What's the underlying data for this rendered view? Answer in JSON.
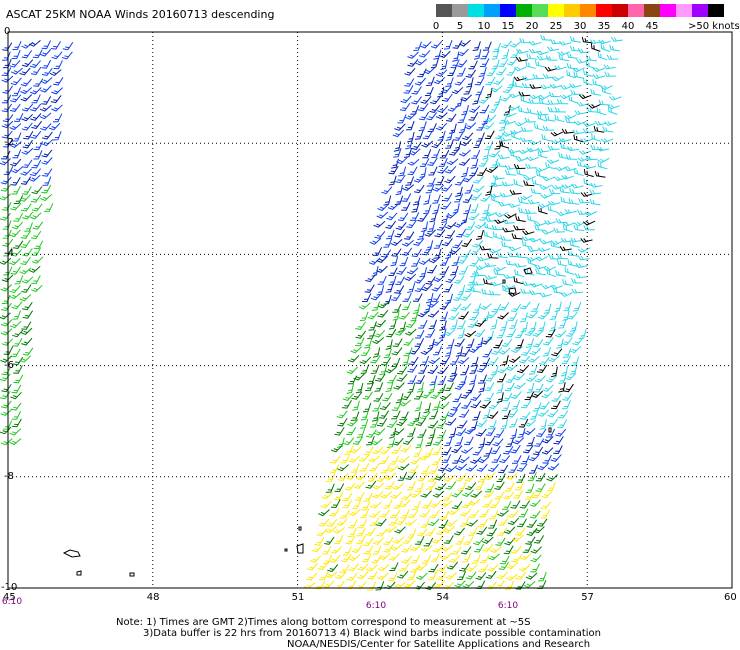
{
  "title": "ASCAT 25KM NOAA Winds 20160713 descending",
  "legend": {
    "unit": "knots",
    "labels": [
      "0",
      "5",
      "10",
      "15",
      "20",
      "25",
      "30",
      "35",
      "40",
      "45",
      ">50 knots"
    ],
    "colors": [
      "#555555",
      "#9a9a9a",
      "#00e0e0",
      "#00a0ff",
      "#0000ff",
      "#00b000",
      "#55dd55",
      "#ffff00",
      "#ffcc00",
      "#ff8800",
      "#ff0000",
      "#cc0000",
      "#ff66aa",
      "#8b4513",
      "#ff00ff",
      "#ff99ff",
      "#a000ff",
      "#000000"
    ]
  },
  "map": {
    "x_ticks": [
      "45",
      "48",
      "51",
      "54",
      "57",
      "60"
    ],
    "y_ticks": [
      "0",
      "-2",
      "-4",
      "-6",
      "-8",
      "-10"
    ],
    "lon_range": [
      45,
      60
    ],
    "lat_range": [
      -10,
      0
    ],
    "grid": "dotted",
    "swath_colors": {
      "cyan": "#2cd5e8",
      "blue": "#1040f0",
      "darkblue": "#0020b0",
      "green": "#20c820",
      "darkgreen": "#007a00",
      "yellow": "#ffe800",
      "black": "#000000"
    }
  },
  "times": [
    "6:10",
    "6:10",
    "6:10"
  ],
  "notes": [
    "Note: 1) Times are GMT 2)Times along bottom correspond to measurement at ~5S",
    "3)Data buffer is 22 hrs from 20160713 4) Black wind barbs indicate possible contamination",
    "NOAA/NESDIS/Center for Satellite Applications and Research"
  ]
}
